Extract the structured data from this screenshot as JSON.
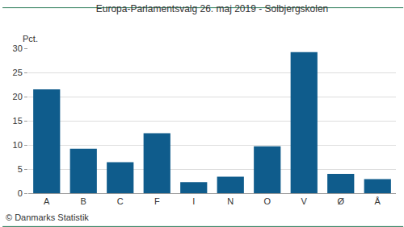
{
  "chart_data": {
    "type": "bar",
    "title": "Europa-Parlamentsvalg 26. maj 2019 - Solbjergskolen",
    "ylabel": "Pct.",
    "annotations": [
      "© Danmarks Statistik"
    ],
    "categories": [
      "A",
      "B",
      "C",
      "F",
      "I",
      "N",
      "O",
      "V",
      "Ø",
      "Å"
    ],
    "values": [
      21.5,
      9.2,
      6.4,
      12.4,
      2.3,
      3.4,
      9.7,
      29.2,
      4.0,
      2.9
    ],
    "color": "#0f5c8c",
    "ylim": [
      0,
      30
    ],
    "yticks": [
      0,
      5,
      10,
      15,
      20,
      25,
      30
    ],
    "grid": true
  }
}
